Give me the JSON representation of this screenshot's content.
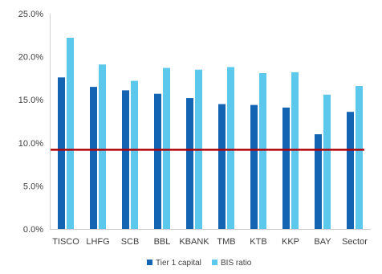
{
  "chart_data": {
    "type": "bar",
    "categories": [
      "TISCO",
      "LHFG",
      "SCB",
      "BBL",
      "KBANK",
      "TMB",
      "KTB",
      "KKP",
      "BAY",
      "Sector"
    ],
    "series": [
      {
        "name": "Tier 1 capital",
        "color": "#1464b4",
        "values": [
          17.6,
          16.5,
          16.1,
          15.7,
          15.2,
          14.5,
          14.4,
          14.1,
          11.0,
          13.6
        ]
      },
      {
        "name": "BIS ratio",
        "color": "#5bc8ec",
        "values": [
          22.2,
          19.1,
          17.2,
          18.7,
          18.5,
          18.8,
          18.1,
          18.2,
          15.6,
          16.6
        ]
      }
    ],
    "reference_line": {
      "value": 9.2,
      "color": "#b00000"
    },
    "yticks": [
      "0.0%",
      "5.0%",
      "10.0%",
      "15.0%",
      "20.0%",
      "25.0%"
    ],
    "ylim": [
      0,
      25
    ],
    "grid": false,
    "legend_position": "bottom-center",
    "title": "",
    "xlabel": "",
    "ylabel": ""
  }
}
